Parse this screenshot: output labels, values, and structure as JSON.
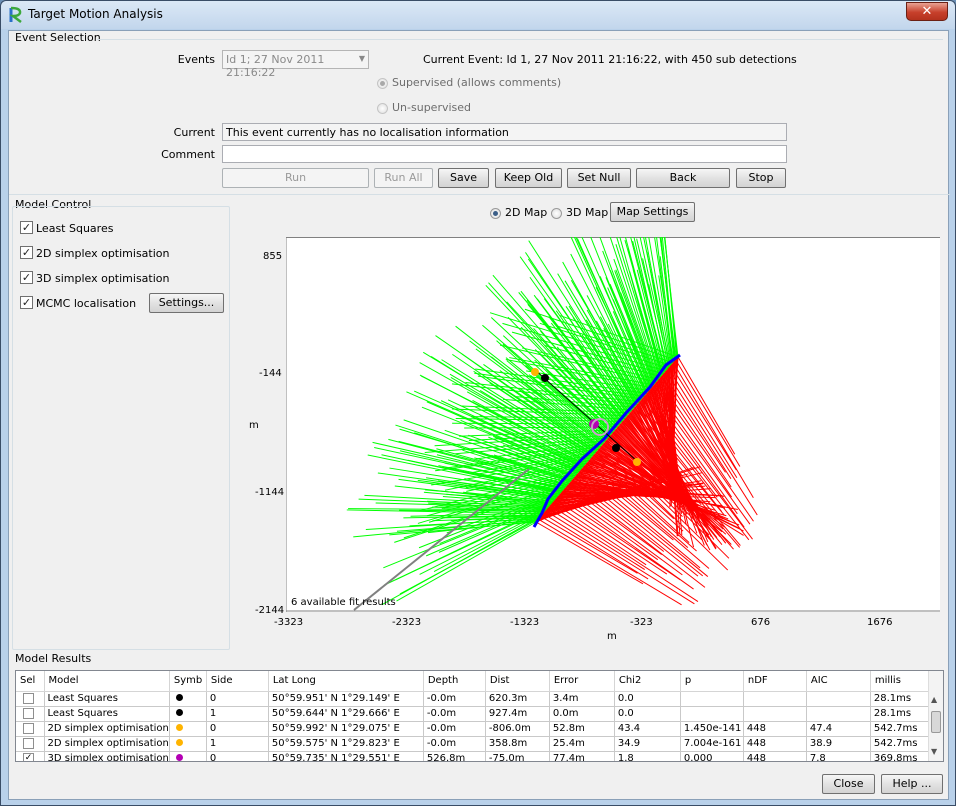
{
  "window": {
    "title": "Target Motion Analysis",
    "close_glyph": "✕"
  },
  "event_selection": {
    "group_label": "Event Selection",
    "events_label": "Events",
    "events_value": "Id 1; 27 Nov 2011 21:16:22",
    "current_event_text": "Current Event: Id 1, 27 Nov 2011 21:16:22, with 450 sub detections",
    "supervised_label": "Supervised (allows comments)",
    "unsupervised_label": "Un-supervised",
    "current_label": "Current",
    "current_value": "This event currently has no localisation information",
    "comment_label": "Comment",
    "comment_value": "",
    "buttons": {
      "run": "Run",
      "run_all": "Run All",
      "save": "Save",
      "keep_old": "Keep Old",
      "set_null": "Set Null",
      "back": "Back",
      "stop": "Stop"
    }
  },
  "model_control": {
    "group_label": "Model Control",
    "items": [
      {
        "label": "Least Squares",
        "checked": true
      },
      {
        "label": "2D simplex optimisation",
        "checked": true
      },
      {
        "label": "3D simplex optimisation",
        "checked": true
      },
      {
        "label": "MCMC localisation",
        "checked": true
      }
    ],
    "settings_button": "Settings..."
  },
  "map": {
    "radio_2d": "2D Map",
    "radio_3d": "3D Map",
    "selected": "2D Map",
    "settings_button": "Map Settings",
    "y_ticks": [
      "855",
      "-144",
      "-1144",
      "-2144"
    ],
    "x_ticks": [
      "-3323",
      "-2323",
      "-1323",
      "-323",
      "676",
      "1676"
    ],
    "x_label": "m",
    "y_label": "m",
    "footer_text": "6 available fit results",
    "colors": {
      "side0": "#ff0000",
      "side1": "#00ff00",
      "array": "#0000ff",
      "track": "#808080"
    }
  },
  "model_results": {
    "group_label": "Model Results",
    "columns": [
      "Sel",
      "Model",
      "Symb",
      "Side",
      "Lat Long",
      "Depth",
      "Dist",
      "Error",
      "Chi2",
      "p",
      "nDF",
      "AIC",
      "millis"
    ],
    "rows": [
      {
        "sel": false,
        "model": "Least Squares",
        "symb_color": "#000000",
        "side": "0",
        "latlong": "50°59.951' N   1°29.149' E",
        "depth": "-0.0m",
        "dist": "620.3m",
        "error": "3.4m",
        "chi2": "0.0",
        "p": "",
        "ndf": "",
        "aic": "",
        "millis": "28.1ms"
      },
      {
        "sel": false,
        "model": "Least Squares",
        "symb_color": "#000000",
        "side": "1",
        "latlong": "50°59.644' N   1°29.666' E",
        "depth": "-0.0m",
        "dist": "927.4m",
        "error": "0.0m",
        "chi2": "0.0",
        "p": "",
        "ndf": "",
        "aic": "",
        "millis": "28.1ms"
      },
      {
        "sel": false,
        "model": "2D simplex optimisation",
        "symb_color": "#ffb400",
        "side": "0",
        "latlong": "50°59.992' N   1°29.075' E",
        "depth": "-0.0m",
        "dist": "-806.0m",
        "error": "52.8m",
        "chi2": "43.4",
        "p": "1.450e-141",
        "ndf": "448",
        "aic": "47.4",
        "millis": "542.7ms"
      },
      {
        "sel": false,
        "model": "2D simplex optimisation",
        "symb_color": "#ffb400",
        "side": "1",
        "latlong": "50°59.575' N   1°29.823' E",
        "depth": "-0.0m",
        "dist": "358.8m",
        "error": "25.4m",
        "chi2": "34.9",
        "p": "7.004e-161",
        "ndf": "448",
        "aic": "38.9",
        "millis": "542.7ms"
      },
      {
        "sel": true,
        "model": "3D simplex optimisation",
        "symb_color": "#b400b4",
        "side": "0",
        "latlong": "50°59.735' N   1°29.551' E",
        "depth": "526.8m",
        "dist": "-75.0m",
        "error": "77.4m",
        "chi2": "1.8",
        "p": "0.000",
        "ndf": "448",
        "aic": "7.8",
        "millis": "369.8ms"
      }
    ]
  },
  "footer": {
    "close_button": "Close",
    "help_button": "Help ..."
  }
}
